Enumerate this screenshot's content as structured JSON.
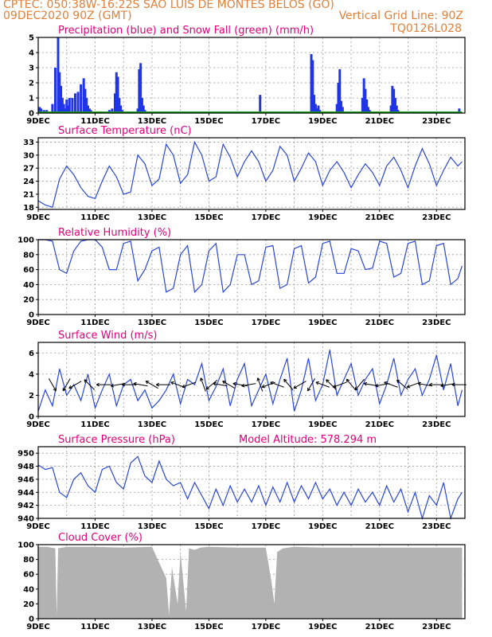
{
  "header": {
    "line1_left": "CPTEC:   050:38W-16:22S  SAO LUIS DE MONTES BELOS (GO)",
    "line2_left": "09DEC2020 90Z (GMT)",
    "line2_right": "Vertical Grid Line: 90Z",
    "line3_right": "TQ0126L028"
  },
  "colors": {
    "header": "#e0803a",
    "title": "#e0007a",
    "precip": "#1f35e6",
    "snow": "#1aa01a",
    "line": "#2a47d6",
    "cloud": "#b2b2b2",
    "wind_arrow": "#000000"
  },
  "x_axis": {
    "start": "09DEC2020",
    "days": 15,
    "tick_labels": [
      "9DEC",
      "11DEC",
      "13DEC",
      "15DEC",
      "17DEC",
      "19DEC",
      "21DEC",
      "23DEC"
    ],
    "tick_days": [
      0,
      2,
      4,
      6,
      8,
      10,
      12,
      14
    ]
  },
  "chart_data": [
    {
      "type": "bar",
      "title": "Precipitation (blue) and Snow Fall (green) (mm/h)",
      "ylim": [
        0,
        5
      ],
      "yticks": [
        0,
        1,
        2,
        3,
        4,
        5
      ],
      "series": [
        {
          "name": "Precipitation",
          "x": [
            0.05,
            0.1,
            0.2,
            0.3,
            0.5,
            0.6,
            0.7,
            0.75,
            0.8,
            0.85,
            0.9,
            0.95,
            1.0,
            1.05,
            1.1,
            1.2,
            1.3,
            1.4,
            1.5,
            1.6,
            1.65,
            1.7,
            1.75,
            1.8,
            1.85,
            1.9,
            2.4,
            2.5,
            2.6,
            2.7,
            2.75,
            2.8,
            2.85,
            2.9,
            2.95,
            3.0,
            3.5,
            3.55,
            3.6,
            3.65,
            3.7,
            3.75,
            7.8,
            9.6,
            9.65,
            9.7,
            9.75,
            9.8,
            9.85,
            9.9,
            10.5,
            10.55,
            10.6,
            10.65,
            10.7,
            11.4,
            11.45,
            11.5,
            11.55,
            11.6,
            11.65,
            12.4,
            12.45,
            12.5,
            12.55,
            12.6,
            12.65,
            14.8
          ],
          "values": [
            0.4,
            0.3,
            0.2,
            0.2,
            0.6,
            3.0,
            5.0,
            2.7,
            1.8,
            1.0,
            0.6,
            0.3,
            0.9,
            0.5,
            1.0,
            1.0,
            1.3,
            1.4,
            1.9,
            2.3,
            1.6,
            1.0,
            0.5,
            0.3,
            0.2,
            0.1,
            0.1,
            0.2,
            0.3,
            1.3,
            2.7,
            2.4,
            1.0,
            0.5,
            0.2,
            0.1,
            0.3,
            2.9,
            3.3,
            1.0,
            0.5,
            0.2,
            1.2,
            3.9,
            3.5,
            1.2,
            0.6,
            0.3,
            0.5,
            0.2,
            0.6,
            2.0,
            2.9,
            0.8,
            0.4,
            1.0,
            2.3,
            1.6,
            0.9,
            0.4,
            0.2,
            0.5,
            1.8,
            1.6,
            1.0,
            0.5,
            0.2,
            0.3
          ]
        },
        {
          "name": "Snow Fall",
          "x": [
            0,
            14.9
          ],
          "values": [
            0,
            0
          ]
        }
      ]
    },
    {
      "type": "line",
      "title": "Surface Temperature (nC)",
      "ylim": [
        17.5,
        34
      ],
      "yticks": [
        18,
        21,
        24,
        27,
        30,
        33
      ],
      "x": [
        0,
        0.25,
        0.5,
        0.75,
        1.0,
        1.25,
        1.5,
        1.75,
        2.0,
        2.25,
        2.5,
        2.75,
        3.0,
        3.25,
        3.5,
        3.75,
        4.0,
        4.25,
        4.5,
        4.75,
        5.0,
        5.25,
        5.5,
        5.75,
        6.0,
        6.25,
        6.5,
        6.75,
        7.0,
        7.25,
        7.5,
        7.75,
        8.0,
        8.25,
        8.5,
        8.75,
        9.0,
        9.25,
        9.5,
        9.75,
        10.0,
        10.25,
        10.5,
        10.75,
        11.0,
        11.25,
        11.5,
        11.75,
        12.0,
        12.25,
        12.5,
        12.75,
        13.0,
        13.25,
        13.5,
        13.75,
        14.0,
        14.25,
        14.5,
        14.75,
        14.9
      ],
      "values": [
        19.5,
        18.5,
        18.0,
        24.5,
        27.5,
        25.5,
        22.5,
        20.5,
        20.0,
        24.0,
        27.5,
        25.0,
        21.0,
        21.5,
        30.0,
        28.0,
        23.0,
        24.5,
        32.5,
        30.0,
        23.5,
        25.5,
        33.0,
        30.0,
        24.0,
        25.0,
        32.5,
        29.5,
        25.0,
        28.5,
        31.0,
        28.5,
        24.0,
        26.5,
        32.0,
        30.0,
        24.0,
        27.0,
        30.5,
        28.5,
        23.0,
        26.5,
        28.5,
        26.0,
        22.5,
        25.5,
        28.0,
        26.0,
        23.0,
        27.5,
        29.5,
        26.5,
        22.5,
        27.5,
        31.5,
        28.0,
        23.0,
        26.5,
        29.5,
        27.5,
        28.5
      ]
    },
    {
      "type": "line",
      "title": "Relative Humidity (%)",
      "ylim": [
        0,
        100
      ],
      "yticks": [
        0,
        20,
        40,
        60,
        80,
        100
      ],
      "x": [
        0,
        0.25,
        0.5,
        0.75,
        1.0,
        1.25,
        1.5,
        1.75,
        2.0,
        2.25,
        2.5,
        2.75,
        3.0,
        3.25,
        3.5,
        3.75,
        4.0,
        4.25,
        4.5,
        4.75,
        5.0,
        5.25,
        5.5,
        5.75,
        6.0,
        6.25,
        6.5,
        6.75,
        7.0,
        7.25,
        7.5,
        7.75,
        8.0,
        8.25,
        8.5,
        8.75,
        9.0,
        9.25,
        9.5,
        9.75,
        10.0,
        10.25,
        10.5,
        10.75,
        11.0,
        11.25,
        11.5,
        11.75,
        12.0,
        12.25,
        12.5,
        12.75,
        13.0,
        13.25,
        13.5,
        13.75,
        14.0,
        14.25,
        14.5,
        14.75,
        14.9
      ],
      "values": [
        100,
        100,
        98,
        60,
        55,
        85,
        98,
        100,
        100,
        90,
        60,
        60,
        95,
        98,
        45,
        60,
        85,
        90,
        30,
        35,
        80,
        92,
        30,
        40,
        85,
        95,
        30,
        40,
        80,
        80,
        40,
        45,
        90,
        92,
        35,
        40,
        88,
        92,
        42,
        50,
        95,
        98,
        55,
        55,
        88,
        85,
        60,
        62,
        98,
        95,
        50,
        55,
        95,
        98,
        40,
        45,
        92,
        95,
        40,
        48,
        65
      ]
    },
    {
      "type": "line",
      "title": "Surface Wind (m/s)",
      "ylim": [
        0,
        7
      ],
      "yticks": [
        0,
        2,
        4,
        6
      ],
      "x": [
        0,
        0.25,
        0.5,
        0.75,
        1.0,
        1.25,
        1.5,
        1.75,
        2.0,
        2.25,
        2.5,
        2.75,
        3.0,
        3.25,
        3.5,
        3.75,
        4.0,
        4.25,
        4.5,
        4.75,
        5.0,
        5.25,
        5.5,
        5.75,
        6.0,
        6.25,
        6.5,
        6.75,
        7.0,
        7.25,
        7.5,
        7.75,
        8.0,
        8.25,
        8.5,
        8.75,
        9.0,
        9.25,
        9.5,
        9.75,
        10.0,
        10.25,
        10.5,
        10.75,
        11.0,
        11.25,
        11.5,
        11.75,
        12.0,
        12.25,
        12.5,
        12.75,
        13.0,
        13.25,
        13.5,
        13.75,
        14.0,
        14.25,
        14.5,
        14.75,
        14.9
      ],
      "values": [
        0.5,
        2.5,
        1.0,
        4.5,
        2.0,
        3.0,
        1.5,
        4.0,
        0.8,
        2.5,
        4.0,
        1.0,
        3.0,
        3.5,
        1.5,
        2.5,
        0.8,
        1.5,
        2.5,
        4.0,
        1.2,
        3.5,
        3.0,
        5.0,
        1.5,
        2.8,
        4.5,
        1.0,
        3.5,
        5.0,
        1.0,
        2.5,
        4.0,
        1.2,
        3.5,
        5.5,
        0.5,
        2.5,
        5.5,
        1.5,
        3.0,
        6.3,
        2.0,
        3.5,
        5.0,
        2.0,
        3.5,
        4.5,
        1.2,
        3.0,
        5.5,
        2.0,
        3.5,
        4.5,
        2.0,
        3.5,
        5.8,
        2.5,
        5.0,
        1.0,
        2.5
      ],
      "arrow_x": [
        0.5,
        1.0,
        1.3,
        1.8,
        2.3,
        2.8,
        3.2,
        3.6,
        4.0,
        4.4,
        4.9,
        5.3,
        5.8,
        6.1,
        6.4,
        6.7,
        7.1,
        7.4,
        7.8,
        8.1,
        8.4,
        8.8,
        9.2,
        9.6,
        10.0,
        10.3,
        10.6,
        11.0,
        11.3,
        11.7,
        12.1,
        12.4,
        12.8,
        13.2,
        13.6,
        14.0,
        14.4,
        14.8
      ],
      "arrow_dir_deg": [
        300,
        240,
        210,
        135,
        180,
        190,
        180,
        170,
        150,
        180,
        160,
        200,
        110,
        220,
        170,
        150,
        170,
        190,
        110,
        200,
        160,
        130,
        210,
        240,
        160,
        135,
        200,
        130,
        230,
        170,
        190,
        160,
        140,
        200,
        170,
        180,
        190,
        180
      ]
    },
    {
      "type": "line",
      "title": "Surface Pressure (hPa)",
      "subtitle": "Model Altitude: 578.294 m",
      "ylim": [
        940,
        951
      ],
      "yticks": [
        940,
        942,
        944,
        946,
        948,
        950
      ],
      "x": [
        0,
        0.25,
        0.5,
        0.75,
        1.0,
        1.25,
        1.5,
        1.75,
        2.0,
        2.25,
        2.5,
        2.75,
        3.0,
        3.25,
        3.5,
        3.75,
        4.0,
        4.25,
        4.5,
        4.75,
        5.0,
        5.25,
        5.5,
        5.75,
        6.0,
        6.25,
        6.5,
        6.75,
        7.0,
        7.25,
        7.5,
        7.75,
        8.0,
        8.25,
        8.5,
        8.75,
        9.0,
        9.25,
        9.5,
        9.75,
        10.0,
        10.25,
        10.5,
        10.75,
        11.0,
        11.25,
        11.5,
        11.75,
        12.0,
        12.25,
        12.5,
        12.75,
        13.0,
        13.25,
        13.5,
        13.75,
        14.0,
        14.25,
        14.5,
        14.75,
        14.9
      ],
      "values": [
        948.2,
        947.5,
        947.8,
        944.0,
        943.2,
        946.0,
        947.0,
        945.0,
        944.0,
        947.5,
        948.0,
        945.5,
        944.5,
        948.5,
        949.5,
        946.5,
        945.5,
        948.8,
        946.0,
        945.0,
        945.5,
        943.0,
        945.5,
        943.5,
        941.5,
        944.5,
        942.0,
        945.0,
        942.5,
        944.5,
        942.5,
        945.0,
        942.0,
        944.8,
        942.5,
        945.5,
        942.5,
        945.0,
        943.0,
        945.5,
        943.0,
        944.5,
        942.0,
        944.0,
        942.0,
        944.5,
        942.5,
        944.0,
        942.0,
        945.0,
        942.5,
        944.5,
        941.0,
        944.0,
        940.0,
        943.5,
        942.0,
        945.5,
        940.0,
        943.0,
        944.0
      ]
    },
    {
      "type": "area",
      "title": "Cloud Cover (%)",
      "ylim": [
        0,
        100
      ],
      "yticks": [
        0,
        20,
        40,
        60,
        80,
        100
      ],
      "x": [
        0,
        0.3,
        0.6,
        0.65,
        0.7,
        1.0,
        2.0,
        3.0,
        4.0,
        4.2,
        4.5,
        4.6,
        4.7,
        4.9,
        5.0,
        5.2,
        5.3,
        5.5,
        5.7,
        6.0,
        7.0,
        8.0,
        8.2,
        8.3,
        8.4,
        8.6,
        9.0,
        10.0,
        11.0,
        12.0,
        13.0,
        14.0,
        14.9
      ],
      "values": [
        97,
        97,
        95,
        5,
        95,
        97,
        97,
        96,
        97,
        80,
        55,
        5,
        70,
        20,
        90,
        10,
        95,
        93,
        96,
        97,
        96,
        96,
        50,
        20,
        90,
        95,
        97,
        96,
        96,
        96,
        96,
        96,
        96
      ]
    }
  ]
}
